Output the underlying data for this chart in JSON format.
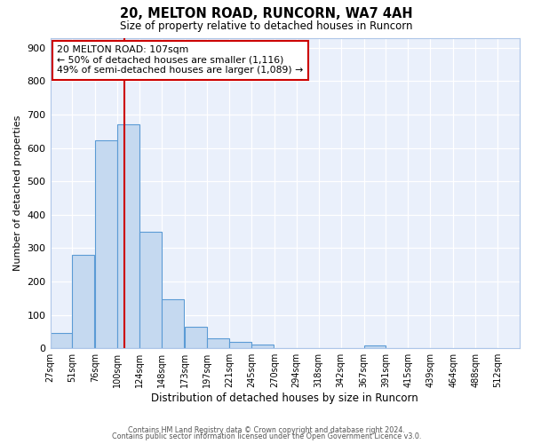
{
  "title1": "20, MELTON ROAD, RUNCORN, WA7 4AH",
  "title2": "Size of property relative to detached houses in Runcorn",
  "xlabel": "Distribution of detached houses by size in Runcorn",
  "ylabel": "Number of detached properties",
  "bin_labels": [
    "27sqm",
    "51sqm",
    "76sqm",
    "100sqm",
    "124sqm",
    "148sqm",
    "173sqm",
    "197sqm",
    "221sqm",
    "245sqm",
    "270sqm",
    "294sqm",
    "318sqm",
    "342sqm",
    "367sqm",
    "391sqm",
    "415sqm",
    "439sqm",
    "464sqm",
    "488sqm",
    "512sqm"
  ],
  "bin_edges": [
    27,
    51,
    76,
    100,
    124,
    148,
    173,
    197,
    221,
    245,
    270,
    294,
    318,
    342,
    367,
    391,
    415,
    439,
    464,
    488,
    512
  ],
  "bar_heights": [
    45,
    280,
    622,
    670,
    348,
    148,
    65,
    30,
    18,
    10,
    0,
    0,
    0,
    0,
    8,
    0,
    0,
    0,
    0,
    0
  ],
  "property_size": 107,
  "annotation_title": "20 MELTON ROAD: 107sqm",
  "annotation_line1": "← 50% of detached houses are smaller (1,116)",
  "annotation_line2": "49% of semi-detached houses are larger (1,089) →",
  "bar_color": "#c5d9f0",
  "bar_edge_color": "#5b9bd5",
  "red_line_color": "#cc0000",
  "annotation_box_edge": "#cc0000",
  "ylim": [
    0,
    930
  ],
  "yticks": [
    0,
    100,
    200,
    300,
    400,
    500,
    600,
    700,
    800,
    900
  ],
  "bg_color": "#eaf0fb",
  "footer1": "Contains HM Land Registry data © Crown copyright and database right 2024.",
  "footer2": "Contains public sector information licensed under the Open Government Licence v3.0."
}
